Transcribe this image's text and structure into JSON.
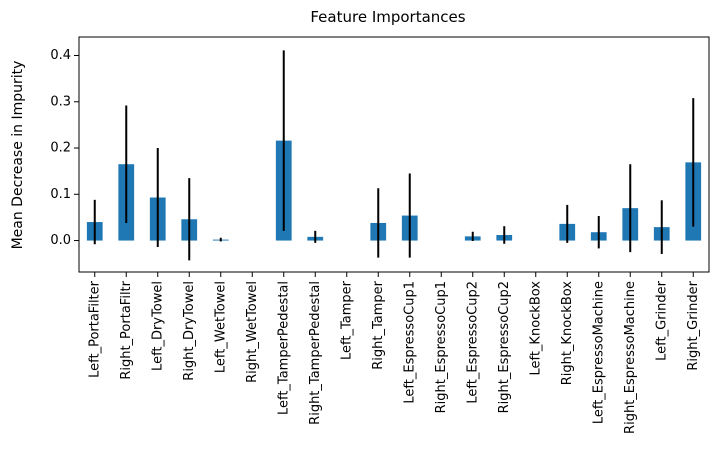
{
  "chart_data": {
    "type": "bar",
    "title": "Feature Importances",
    "xlabel": "",
    "ylabel": "Mean Decrease in Impurity",
    "categories": [
      "Left_PortaFilter",
      "Right_PortaFiltr",
      "Left_DryTowel",
      "Right_DryTowel",
      "Left_WetTowel",
      "Right_WetTowel",
      "Left_TamperPedestal",
      "Right_TamperPedestal",
      "Left_Tamper",
      "Right_Tamper",
      "Left_EspressoCup1",
      "Right_EspressoCup1",
      "Left_EspressoCup2",
      "Right_EspressoCup2",
      "Left_KnockBox",
      "Right_KnockBox",
      "Left_EspressoMachine",
      "Right_EspressoMachine",
      "Left_Grinder",
      "Right_Grinder"
    ],
    "values": [
      0.04,
      0.165,
      0.093,
      0.046,
      0.002,
      0.0,
      0.216,
      0.008,
      0.0,
      0.038,
      0.054,
      0.0,
      0.009,
      0.012,
      0.0,
      0.036,
      0.018,
      0.07,
      0.029,
      0.169
    ],
    "errors": [
      0.048,
      0.127,
      0.107,
      0.089,
      0.004,
      0.0,
      0.195,
      0.013,
      0.0,
      0.075,
      0.091,
      0.0,
      0.01,
      0.019,
      0.0,
      0.041,
      0.035,
      0.095,
      0.058,
      0.139
    ],
    "ylim": [
      -0.068,
      0.44
    ],
    "yticks": [
      0.0,
      0.1,
      0.2,
      0.3,
      0.4
    ],
    "ytick_labels": [
      "0.0",
      "0.1",
      "0.2",
      "0.3",
      "0.4"
    ],
    "grid": false,
    "colors": {
      "bar": "#1f77b4",
      "error": "#000000"
    }
  }
}
